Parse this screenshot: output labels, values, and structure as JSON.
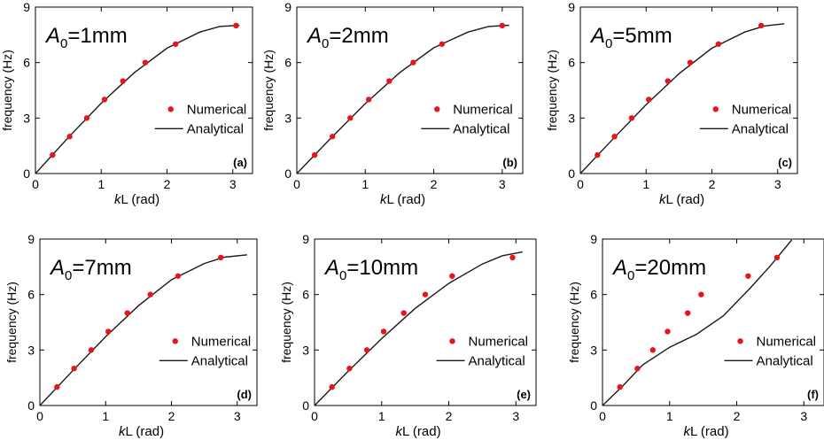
{
  "figure": {
    "xlabel_italic": "k",
    "xlabel_rest": "L (rad)",
    "ylabel": "frequency (Hz)",
    "legend": {
      "numerical": "Numerical",
      "analytical": "Analytical"
    },
    "colors": {
      "marker": "#e8141b",
      "line": "#1a1a1a",
      "axis": "#000000"
    }
  },
  "chart_data": [
    {
      "type": "line",
      "panel_label": "(a)",
      "annotation": {
        "symbol": "A",
        "subscript": "0",
        "value": "=1mm"
      },
      "xlim": [
        0,
        3.3
      ],
      "ylim": [
        0,
        9
      ],
      "xticks": [
        "0",
        "1",
        "2",
        "3"
      ],
      "yticks": [
        "0",
        "3",
        "6",
        "9"
      ],
      "series": [
        {
          "name": "Numerical",
          "kind": "scatter",
          "x": [
            0.26,
            0.52,
            0.78,
            1.05,
            1.33,
            1.67,
            2.13,
            3.05
          ],
          "y": [
            1,
            2,
            3,
            4,
            5,
            6,
            7,
            8
          ]
        },
        {
          "name": "Analytical",
          "kind": "line",
          "x": [
            0,
            0.5,
            1.0,
            1.5,
            2.0,
            2.5,
            2.8,
            3.1
          ],
          "y": [
            0,
            1.95,
            3.8,
            5.45,
            6.78,
            7.65,
            7.95,
            8.02
          ]
        }
      ]
    },
    {
      "type": "line",
      "panel_label": "(b)",
      "annotation": {
        "symbol": "A",
        "subscript": "0",
        "value": "=2mm"
      },
      "xlim": [
        0,
        3.3
      ],
      "ylim": [
        0,
        9
      ],
      "xticks": [
        "0",
        "1",
        "2",
        "3"
      ],
      "yticks": [
        "0",
        "3",
        "6",
        "9"
      ],
      "series": [
        {
          "name": "Numerical",
          "kind": "scatter",
          "x": [
            0.26,
            0.52,
            0.78,
            1.05,
            1.35,
            1.7,
            2.12,
            3.0
          ],
          "y": [
            1,
            2,
            3,
            4,
            5,
            6,
            7,
            8
          ]
        },
        {
          "name": "Analytical",
          "kind": "line",
          "x": [
            0,
            0.5,
            1.0,
            1.5,
            2.0,
            2.5,
            2.8,
            3.1
          ],
          "y": [
            0,
            1.92,
            3.78,
            5.45,
            6.8,
            7.65,
            7.95,
            8.02
          ]
        }
      ]
    },
    {
      "type": "line",
      "panel_label": "(c)",
      "annotation": {
        "symbol": "A",
        "subscript": "0",
        "value": "=5mm"
      },
      "xlim": [
        0,
        3.3
      ],
      "ylim": [
        0,
        9
      ],
      "xticks": [
        "0",
        "1",
        "2",
        "3"
      ],
      "yticks": [
        "0",
        "3",
        "6",
        "9"
      ],
      "series": [
        {
          "name": "Numerical",
          "kind": "scatter",
          "x": [
            0.26,
            0.52,
            0.78,
            1.04,
            1.33,
            1.67,
            2.1,
            2.75
          ],
          "y": [
            1,
            2,
            3,
            4,
            5,
            6,
            7,
            8
          ]
        },
        {
          "name": "Analytical",
          "kind": "line",
          "x": [
            0,
            0.5,
            1.0,
            1.5,
            2.0,
            2.5,
            2.8,
            3.1
          ],
          "y": [
            0,
            1.88,
            3.72,
            5.4,
            6.78,
            7.65,
            7.98,
            8.1
          ]
        }
      ]
    },
    {
      "type": "line",
      "panel_label": "(d)",
      "annotation": {
        "symbol": "A",
        "subscript": "0",
        "value": "=7mm"
      },
      "xlim": [
        0,
        3.3
      ],
      "ylim": [
        0,
        9
      ],
      "xticks": [
        "0",
        "1",
        "2",
        "3"
      ],
      "yticks": [
        "0",
        "3",
        "6",
        "9"
      ],
      "series": [
        {
          "name": "Numerical",
          "kind": "scatter",
          "x": [
            0.26,
            0.52,
            0.78,
            1.04,
            1.33,
            1.68,
            2.1,
            2.75
          ],
          "y": [
            1,
            2,
            3,
            4,
            5,
            6,
            7,
            8
          ]
        },
        {
          "name": "Analytical",
          "kind": "line",
          "x": [
            0,
            0.5,
            1.0,
            1.5,
            2.0,
            2.5,
            2.8,
            3.15
          ],
          "y": [
            0,
            1.88,
            3.72,
            5.4,
            6.8,
            7.68,
            8.02,
            8.15
          ]
        }
      ]
    },
    {
      "type": "line",
      "panel_label": "(e)",
      "annotation": {
        "symbol": "A",
        "subscript": "0",
        "value": "=10mm"
      },
      "xlim": [
        0,
        3.3
      ],
      "ylim": [
        0,
        9
      ],
      "xticks": [
        "0",
        "1",
        "2",
        "3"
      ],
      "yticks": [
        "0",
        "3",
        "6",
        "9"
      ],
      "series": [
        {
          "name": "Numerical",
          "kind": "scatter",
          "x": [
            0.26,
            0.52,
            0.78,
            1.03,
            1.33,
            1.65,
            2.05,
            2.95
          ],
          "y": [
            1,
            2,
            3,
            4,
            5,
            6,
            7,
            8
          ]
        },
        {
          "name": "Analytical",
          "kind": "line",
          "x": [
            0,
            0.5,
            1.0,
            1.5,
            2.0,
            2.5,
            2.8,
            3.1
          ],
          "y": [
            0,
            1.85,
            3.62,
            5.25,
            6.6,
            7.65,
            8.1,
            8.3
          ]
        }
      ]
    },
    {
      "type": "line",
      "panel_label": "(f)",
      "annotation": {
        "symbol": "A",
        "subscript": "0",
        "value": "=20mm"
      },
      "xlim": [
        0,
        3.3
      ],
      "ylim": [
        0,
        9
      ],
      "xticks": [
        "0",
        "1",
        "2",
        "3"
      ],
      "yticks": [
        "0",
        "3",
        "6",
        "9"
      ],
      "series": [
        {
          "name": "Numerical",
          "kind": "scatter",
          "x": [
            0.26,
            0.52,
            0.75,
            0.97,
            1.27,
            1.47,
            2.17,
            2.6
          ],
          "y": [
            1,
            2,
            3,
            4,
            5,
            6,
            7,
            8
          ]
        },
        {
          "name": "Analytical",
          "kind": "line",
          "x": [
            0,
            0.3,
            0.6,
            1.0,
            1.4,
            1.8,
            2.2,
            2.5,
            2.82
          ],
          "y": [
            0,
            1.05,
            2.2,
            3.15,
            3.85,
            4.85,
            6.35,
            7.55,
            8.95
          ]
        }
      ]
    }
  ]
}
